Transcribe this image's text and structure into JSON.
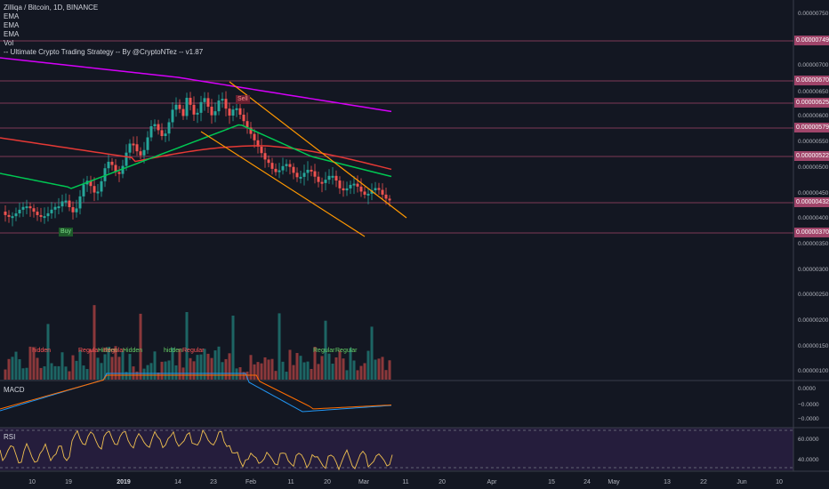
{
  "header": {
    "title": "Zilliqa / Bitcoin, 1D, BINANCE",
    "indicators": [
      "EMA",
      "EMA",
      "EMA",
      "Vol",
      "-- Ultimate Crypto Trading Strategy -- By @CryptoNTez -- v1.87"
    ]
  },
  "panes": {
    "macd_label": "MACD",
    "rsi_label": "RSI"
  },
  "price_axis": [
    "0.00000750",
    "0.00000700",
    "0.00000650",
    "0.00000600",
    "0.00000550",
    "0.00000500",
    "0.00000450",
    "0.00000400",
    "0.00000350",
    "0.00000300",
    "0.00000250",
    "0.00000200",
    "0.00000150",
    "0.00000100"
  ],
  "price_tags": [
    "0.00000749",
    "0.00000670",
    "0.00000625",
    "0.00000579",
    "0.00000522",
    "0.00000432",
    "0.00000370"
  ],
  "macd_axis": [
    "0.0000",
    "−0.0000",
    "−0.0000"
  ],
  "rsi_axis": [
    "60.0000",
    "40.0000"
  ],
  "time_axis": [
    {
      "label": "10",
      "bold": false
    },
    {
      "label": "19",
      "bold": false
    },
    {
      "label": "2019",
      "bold": true
    },
    {
      "label": "14",
      "bold": false
    },
    {
      "label": "23",
      "bold": false
    },
    {
      "label": "Feb",
      "bold": false
    },
    {
      "label": "11",
      "bold": false
    },
    {
      "label": "20",
      "bold": false
    },
    {
      "label": "Mar",
      "bold": false
    },
    {
      "label": "11",
      "bold": false
    },
    {
      "label": "20",
      "bold": false
    },
    {
      "label": "Apr",
      "bold": false
    },
    {
      "label": "15",
      "bold": false
    },
    {
      "label": "24",
      "bold": false
    },
    {
      "label": "May",
      "bold": false
    },
    {
      "label": "13",
      "bold": false
    },
    {
      "label": "22",
      "bold": false
    },
    {
      "label": "Jun",
      "bold": false
    },
    {
      "label": "10",
      "bold": false
    }
  ],
  "signals": {
    "buy": "Buy",
    "sell": "Sell"
  },
  "divergences": [
    {
      "text": "hidden",
      "color": "red"
    },
    {
      "text": "Regular",
      "color": "red"
    },
    {
      "text": "Hidden",
      "color": "green"
    },
    {
      "text": "Regular",
      "color": "red"
    },
    {
      "text": "Hidden",
      "color": "green"
    },
    {
      "text": "hidden",
      "color": "green"
    },
    {
      "text": "Regular",
      "color": "red"
    },
    {
      "text": "Regular",
      "color": "green"
    },
    {
      "text": "Regular",
      "color": "green"
    }
  ],
  "colors": {
    "up": "#26a69a",
    "down": "#ef5350",
    "ema_short": "#00c853",
    "ema_mid": "#e53935",
    "ema_long": "#d500f9",
    "channel": "#ff9800",
    "hline": "#a0456a"
  }
}
